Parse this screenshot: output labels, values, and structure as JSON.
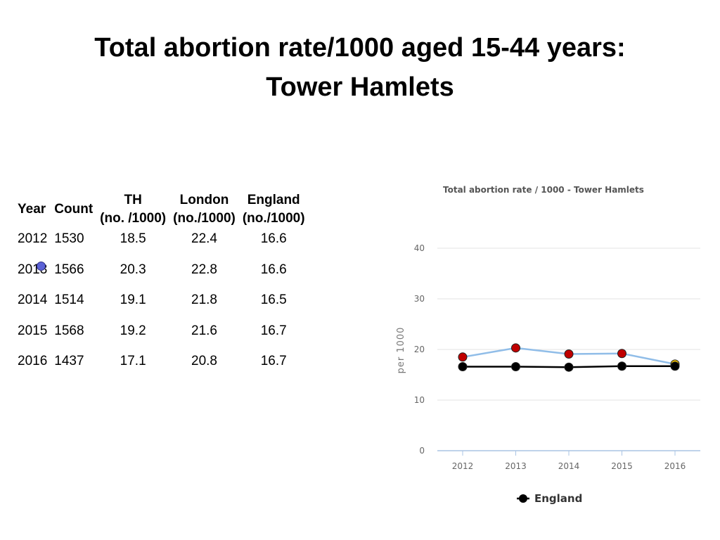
{
  "slide": {
    "title_line1": "Total abortion rate/1000 aged 15-44 years:",
    "title_line2": "Tower Hamlets"
  },
  "table": {
    "headers": {
      "year": "Year",
      "count": "Count",
      "th": [
        "TH",
        "(no. /1000)"
      ],
      "london": [
        "London",
        "(no./1000)"
      ],
      "england": [
        "England",
        "(no./1000)"
      ]
    },
    "rows": [
      {
        "year": "2012",
        "count": "1530",
        "th": "18.5",
        "london": "22.4",
        "england": "16.6"
      },
      {
        "year": "2013",
        "count": "1566",
        "th": "20.3",
        "london": "22.8",
        "england": "16.6"
      },
      {
        "year": "2014",
        "count": "1514",
        "th": "19.1",
        "london": "21.8",
        "england": "16.5"
      },
      {
        "year": "2015",
        "count": "1568",
        "th": "19.2",
        "london": "21.6",
        "england": "16.7"
      },
      {
        "year": "2016",
        "count": "1437",
        "th": "17.1",
        "london": "20.8",
        "england": "16.7"
      }
    ]
  },
  "chart_data": {
    "type": "line",
    "title": "Total abortion rate / 1000 - Tower Hamlets",
    "ylabel": "per 1000",
    "xlabel": "",
    "ylim": [
      0,
      40
    ],
    "yticks": [
      0,
      10,
      20,
      30,
      40
    ],
    "categories": [
      "2012",
      "2013",
      "2014",
      "2015",
      "2016"
    ],
    "grid": true,
    "legend_position": "bottom",
    "series": [
      {
        "name": "",
        "values": [
          18.5,
          20.3,
          19.1,
          19.2,
          17.1
        ],
        "line_color": "#90bde8",
        "point_colors": [
          "#c00000",
          "#c00000",
          "#c00000",
          "#c00000",
          "#f5c400"
        ]
      },
      {
        "name": "England",
        "values": [
          16.6,
          16.6,
          16.5,
          16.7,
          16.7
        ],
        "line_color": "#000000",
        "point_colors": [
          "#000000",
          "#000000",
          "#000000",
          "#000000",
          "#000000"
        ]
      }
    ],
    "legend": [
      {
        "label": "England",
        "color": "#000000"
      }
    ]
  }
}
